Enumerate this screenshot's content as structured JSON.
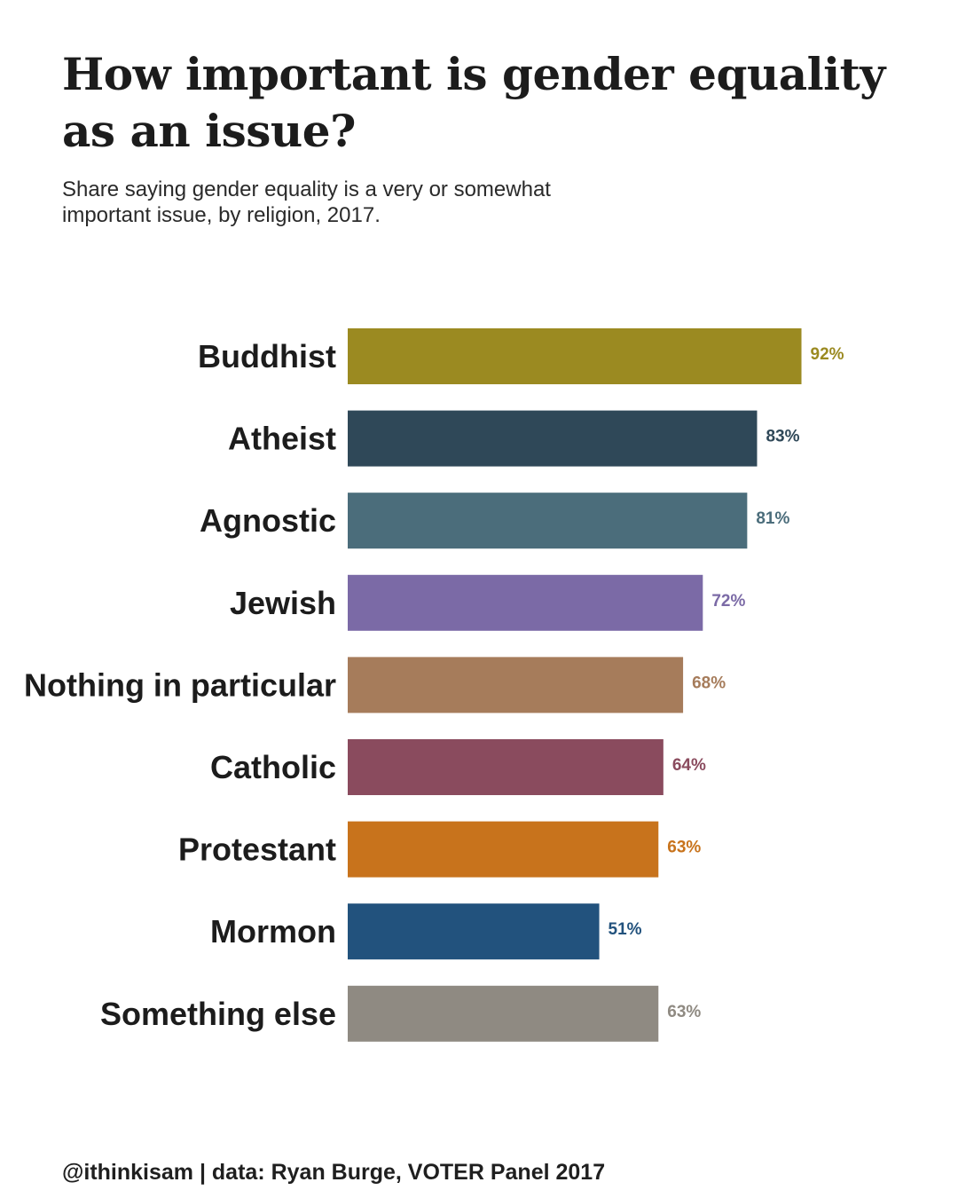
{
  "title": "How important is gender equality as an issue?",
  "subtitle": "Share saying gender equality is a very or somewhat important issue, by religion, 2017.",
  "footer": "@ithinkisam | data: Ryan Burge, VOTER Panel 2017",
  "chart_data": {
    "type": "bar",
    "orientation": "horizontal",
    "title": "How important is gender equality as an issue?",
    "subtitle": "Share saying gender equality is a very or somewhat important issue, by religion, 2017.",
    "xlabel": "",
    "ylabel": "",
    "xlim": [
      0,
      100
    ],
    "grid": false,
    "legend": "none",
    "categories": [
      "Buddhist",
      "Atheist",
      "Agnostic",
      "Jewish",
      "Nothing in particular",
      "Catholic",
      "Protestant",
      "Mormon",
      "Something else"
    ],
    "values": [
      92,
      83,
      81,
      72,
      68,
      64,
      63,
      51,
      63
    ],
    "value_labels": [
      "92%",
      "83%",
      "81%",
      "72%",
      "68%",
      "64%",
      "63%",
      "51%",
      "63%"
    ],
    "colors": [
      "#9b8a21",
      "#2f4858",
      "#4b6d7b",
      "#7b6aa6",
      "#a67c5b",
      "#8a4b5e",
      "#c8731c",
      "#22527d",
      "#8f8a82"
    ]
  }
}
